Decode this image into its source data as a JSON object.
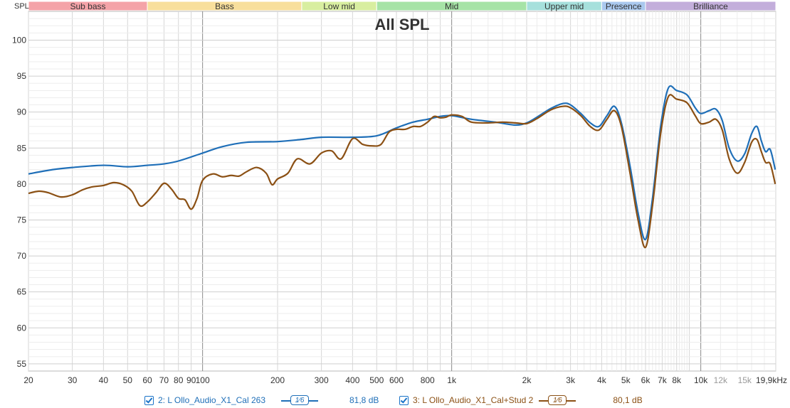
{
  "chart_data": {
    "type": "line",
    "title": "All SPL",
    "ylabel": "SPL",
    "x_scale": "log",
    "xlim": [
      20,
      20000
    ],
    "ylim": [
      54,
      104
    ],
    "y_ticks": [
      55,
      60,
      65,
      70,
      75,
      80,
      85,
      90,
      95,
      100
    ],
    "x_tick_labels": [
      {
        "f": 20,
        "label": "20",
        "minor": false
      },
      {
        "f": 30,
        "label": "30",
        "minor": false
      },
      {
        "f": 40,
        "label": "40",
        "minor": false
      },
      {
        "f": 50,
        "label": "50",
        "minor": false
      },
      {
        "f": 60,
        "label": "60",
        "minor": false
      },
      {
        "f": 70,
        "label": "70",
        "minor": false
      },
      {
        "f": 80,
        "label": "80",
        "minor": false
      },
      {
        "f": 90,
        "label": "90",
        "minor": false
      },
      {
        "f": 100,
        "label": "100",
        "minor": false
      },
      {
        "f": 200,
        "label": "200",
        "minor": false
      },
      {
        "f": 300,
        "label": "300",
        "minor": false
      },
      {
        "f": 400,
        "label": "400",
        "minor": false
      },
      {
        "f": 500,
        "label": "500",
        "minor": false
      },
      {
        "f": 600,
        "label": "600",
        "minor": false
      },
      {
        "f": 800,
        "label": "800",
        "minor": false
      },
      {
        "f": 1000,
        "label": "1k",
        "minor": false
      },
      {
        "f": 2000,
        "label": "2k",
        "minor": false
      },
      {
        "f": 3000,
        "label": "3k",
        "minor": false
      },
      {
        "f": 4000,
        "label": "4k",
        "minor": false
      },
      {
        "f": 5000,
        "label": "5k",
        "minor": false
      },
      {
        "f": 6000,
        "label": "6k",
        "minor": false
      },
      {
        "f": 7000,
        "label": "7k",
        "minor": false
      },
      {
        "f": 8000,
        "label": "8k",
        "minor": false
      },
      {
        "f": 10000,
        "label": "10k",
        "minor": false
      },
      {
        "f": 12000,
        "label": "12k",
        "minor": true
      },
      {
        "f": 15000,
        "label": "15k",
        "minor": true
      },
      {
        "f": 19900,
        "label": "19,9kHz",
        "minor": false
      }
    ],
    "bands": [
      {
        "name": "Sub bass",
        "from": 20,
        "to": 60,
        "color": "#f4a3a8"
      },
      {
        "name": "Bass",
        "from": 60,
        "to": 250,
        "color": "#f8df9c"
      },
      {
        "name": "Low mid",
        "from": 250,
        "to": 500,
        "color": "#d8eea0"
      },
      {
        "name": "Mid",
        "from": 500,
        "to": 2000,
        "color": "#a6e3a6"
      },
      {
        "name": "Upper mid",
        "from": 2000,
        "to": 4000,
        "color": "#a6e0dc"
      },
      {
        "name": "Presence",
        "from": 4000,
        "to": 6000,
        "color": "#a9c8ee"
      },
      {
        "name": "Brilliance",
        "from": 6000,
        "to": 20000,
        "color": "#c3aedb"
      }
    ],
    "series": [
      {
        "name": "2: L Ollo_Audio_X1_Cal 263",
        "color": "#1f6fb8",
        "smoothing": "1⁄6",
        "value": "81,8 dB",
        "points": [
          [
            20,
            81.4
          ],
          [
            25,
            82.0
          ],
          [
            30,
            82.3
          ],
          [
            40,
            82.6
          ],
          [
            50,
            82.4
          ],
          [
            60,
            82.6
          ],
          [
            70,
            82.8
          ],
          [
            80,
            83.2
          ],
          [
            100,
            84.3
          ],
          [
            120,
            85.2
          ],
          [
            150,
            85.8
          ],
          [
            200,
            85.9
          ],
          [
            250,
            86.2
          ],
          [
            300,
            86.5
          ],
          [
            400,
            86.5
          ],
          [
            500,
            86.7
          ],
          [
            600,
            87.8
          ],
          [
            700,
            88.6
          ],
          [
            800,
            89.0
          ],
          [
            900,
            89.4
          ],
          [
            1000,
            89.5
          ],
          [
            1200,
            89.0
          ],
          [
            1500,
            88.6
          ],
          [
            1800,
            88.2
          ],
          [
            2000,
            88.5
          ],
          [
            2200,
            89.3
          ],
          [
            2500,
            90.5
          ],
          [
            2800,
            91.2
          ],
          [
            3000,
            91.0
          ],
          [
            3300,
            89.8
          ],
          [
            3600,
            88.5
          ],
          [
            3900,
            88.0
          ],
          [
            4200,
            89.5
          ],
          [
            4500,
            90.8
          ],
          [
            4800,
            88.5
          ],
          [
            5200,
            82.5
          ],
          [
            5600,
            76.0
          ],
          [
            6000,
            72.3
          ],
          [
            6400,
            78.0
          ],
          [
            6900,
            88.0
          ],
          [
            7400,
            93.3
          ],
          [
            8000,
            93.0
          ],
          [
            8800,
            92.4
          ],
          [
            9500,
            90.6
          ],
          [
            10000,
            89.8
          ],
          [
            10800,
            90.2
          ],
          [
            11500,
            90.4
          ],
          [
            12200,
            88.8
          ],
          [
            13000,
            85.0
          ],
          [
            14000,
            83.2
          ],
          [
            15000,
            84.2
          ],
          [
            16000,
            87.0
          ],
          [
            16800,
            88.0
          ],
          [
            17500,
            86.0
          ],
          [
            18200,
            84.5
          ],
          [
            19000,
            84.8
          ],
          [
            19900,
            82.0
          ]
        ]
      },
      {
        "name": "3: L Ollo_Audio_X1_Cal+Stud 2",
        "color": "#8b5014",
        "smoothing": "1⁄6",
        "value": "80,1 dB",
        "points": [
          [
            20,
            78.7
          ],
          [
            22,
            79.0
          ],
          [
            24,
            78.8
          ],
          [
            27,
            78.2
          ],
          [
            30,
            78.5
          ],
          [
            33,
            79.2
          ],
          [
            36,
            79.6
          ],
          [
            40,
            79.8
          ],
          [
            44,
            80.2
          ],
          [
            48,
            79.9
          ],
          [
            52,
            79.0
          ],
          [
            56,
            77.0
          ],
          [
            60,
            77.5
          ],
          [
            65,
            78.8
          ],
          [
            70,
            80.1
          ],
          [
            75,
            79.3
          ],
          [
            80,
            78.0
          ],
          [
            85,
            77.8
          ],
          [
            90,
            76.5
          ],
          [
            95,
            78.0
          ],
          [
            100,
            80.5
          ],
          [
            110,
            81.4
          ],
          [
            120,
            81.0
          ],
          [
            130,
            81.2
          ],
          [
            140,
            81.1
          ],
          [
            150,
            81.7
          ],
          [
            165,
            82.3
          ],
          [
            180,
            81.5
          ],
          [
            190,
            79.9
          ],
          [
            200,
            80.7
          ],
          [
            220,
            81.5
          ],
          [
            240,
            83.5
          ],
          [
            270,
            82.8
          ],
          [
            300,
            84.3
          ],
          [
            330,
            84.6
          ],
          [
            360,
            83.5
          ],
          [
            400,
            86.3
          ],
          [
            440,
            85.5
          ],
          [
            480,
            85.3
          ],
          [
            520,
            85.5
          ],
          [
            560,
            87.2
          ],
          [
            600,
            87.6
          ],
          [
            650,
            87.6
          ],
          [
            700,
            88.0
          ],
          [
            750,
            88.0
          ],
          [
            800,
            88.6
          ],
          [
            850,
            89.4
          ],
          [
            900,
            89.2
          ],
          [
            950,
            89.3
          ],
          [
            1000,
            89.6
          ],
          [
            1100,
            89.4
          ],
          [
            1200,
            88.6
          ],
          [
            1400,
            88.5
          ],
          [
            1600,
            88.6
          ],
          [
            1800,
            88.5
          ],
          [
            2000,
            88.4
          ],
          [
            2200,
            89.1
          ],
          [
            2500,
            90.3
          ],
          [
            2800,
            90.8
          ],
          [
            3000,
            90.6
          ],
          [
            3300,
            89.5
          ],
          [
            3600,
            88.0
          ],
          [
            3900,
            87.5
          ],
          [
            4200,
            89.0
          ],
          [
            4500,
            90.2
          ],
          [
            4800,
            88.0
          ],
          [
            5200,
            81.5
          ],
          [
            5600,
            75.0
          ],
          [
            6000,
            71.2
          ],
          [
            6400,
            77.0
          ],
          [
            6900,
            87.0
          ],
          [
            7400,
            92.1
          ],
          [
            8000,
            91.8
          ],
          [
            8800,
            91.3
          ],
          [
            9500,
            89.5
          ],
          [
            10000,
            88.4
          ],
          [
            10800,
            88.6
          ],
          [
            11500,
            89.0
          ],
          [
            12200,
            87.5
          ],
          [
            13000,
            83.5
          ],
          [
            14000,
            81.5
          ],
          [
            15000,
            83.0
          ],
          [
            16000,
            85.8
          ],
          [
            16800,
            86.2
          ],
          [
            17500,
            84.5
          ],
          [
            18200,
            83.0
          ],
          [
            19000,
            82.8
          ],
          [
            19900,
            80.0
          ]
        ]
      }
    ]
  }
}
